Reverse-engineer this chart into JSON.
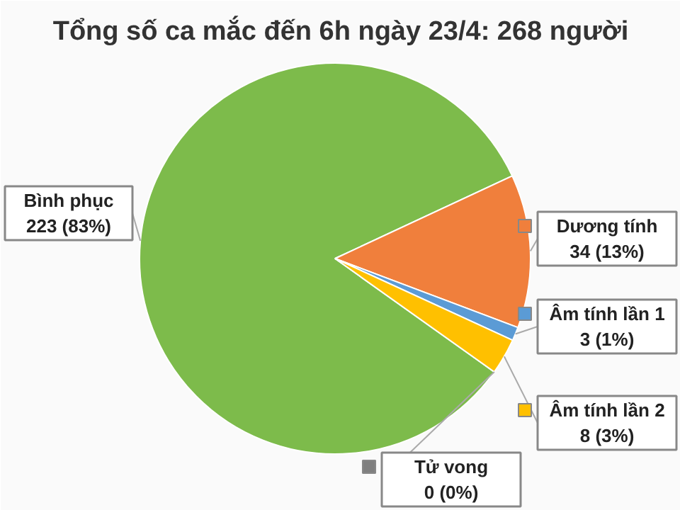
{
  "chart_data": {
    "type": "pie",
    "title": "Tổng số ca mắc đến 6h ngày 23/4: 268 người",
    "categories": [
      "Bình phục",
      "Dương tính",
      "Âm tính lần 1",
      "Âm tính lần 2",
      "Tử vong"
    ],
    "values": [
      223,
      34,
      3,
      8,
      0
    ],
    "value_labels": [
      "223 (83%)",
      "34 (13%)",
      "3 (1%)",
      "8 (3%)",
      "0 (0%)"
    ],
    "colors": [
      "#7dbb4b",
      "#f07f3c",
      "#5b9bd5",
      "#ffc000",
      "#7f7f7f"
    ],
    "legend": "right"
  }
}
